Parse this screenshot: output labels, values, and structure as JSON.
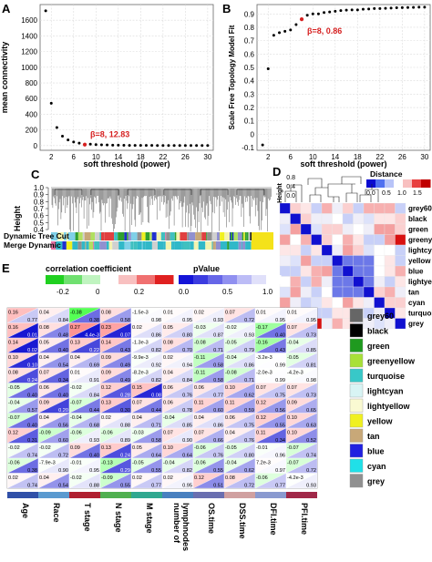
{
  "panels": {
    "A": {
      "letter": "A",
      "chart_data": {
        "type": "scatter",
        "xlabel": "soft threshold (power)",
        "ylabel": "mean connectivity",
        "xticks": [
          "2",
          "6",
          "10",
          "14",
          "18",
          "22",
          "26",
          "30"
        ],
        "yticks": [
          "0",
          "200",
          "400",
          "600",
          "800",
          "1000",
          "1200",
          "1400",
          "1600"
        ],
        "xlim": [
          0,
          31
        ],
        "ylim": [
          -60,
          1800
        ],
        "grid": true,
        "x": [
          1,
          2,
          3,
          4,
          5,
          6,
          7,
          8,
          9,
          10,
          11,
          12,
          13,
          14,
          15,
          16,
          17,
          18,
          19,
          20,
          21,
          22,
          23,
          24,
          25,
          26,
          27,
          28,
          29,
          30
        ],
        "y": [
          1720,
          540,
          230,
          120,
          72,
          46,
          32,
          12.83,
          18,
          13,
          10,
          8,
          6,
          5,
          4,
          3,
          3,
          2,
          2,
          2,
          1,
          1,
          1,
          1,
          1,
          1,
          1,
          1,
          1,
          1
        ],
        "highlight": {
          "index": 7,
          "label": "β=8, 12.83",
          "color": "#d62020"
        }
      }
    },
    "B": {
      "letter": "B",
      "chart_data": {
        "type": "scatter",
        "xlabel": "soft threshold (power)",
        "ylabel": "Scale Free Topology Model Fit",
        "xticks": [
          "2",
          "6",
          "10",
          "14",
          "18",
          "22",
          "26",
          "30"
        ],
        "yticks": [
          "-0.1",
          "0",
          "0.1",
          "0.2",
          "0.3",
          "0.4",
          "0.5",
          "0.6",
          "0.7",
          "0.8",
          "0.9"
        ],
        "xlim": [
          0,
          31
        ],
        "ylim": [
          -0.12,
          0.97
        ],
        "grid": true,
        "x": [
          1,
          2,
          3,
          4,
          5,
          6,
          7,
          8,
          9,
          10,
          11,
          12,
          13,
          14,
          15,
          16,
          17,
          18,
          19,
          20,
          21,
          22,
          23,
          24,
          25,
          26,
          27,
          28,
          29,
          30
        ],
        "y": [
          -0.08,
          0.49,
          0.74,
          0.76,
          0.77,
          0.78,
          0.82,
          0.86,
          0.89,
          0.9,
          0.9,
          0.91,
          0.915,
          0.92,
          0.925,
          0.928,
          0.93,
          0.93,
          0.935,
          0.937,
          0.94,
          0.94,
          0.942,
          0.944,
          0.946,
          0.947,
          0.948,
          0.949,
          0.95,
          0.95
        ],
        "highlight": {
          "index": 7,
          "label": "β=8, 0.86",
          "color": "#d62020"
        }
      }
    },
    "C": {
      "letter": "C",
      "ylabel": "Height",
      "yticks": [
        "1.0",
        "0.9",
        "0.8",
        "0.7",
        "0.6",
        "0.5",
        "0.4"
      ],
      "row_labels": [
        "Dynamic Tree Cut",
        "Merge Dynamic"
      ]
    },
    "D": {
      "letter": "D",
      "legend_title": "Distance",
      "legend_ticks": [
        "0.0",
        "0.5",
        "1.0",
        "1.5"
      ],
      "ylabel": "Height",
      "yticks": [
        "0.8",
        "0.4",
        "0.0"
      ],
      "modules": [
        "grey60",
        "black",
        "green",
        "greenyellow",
        "lightcyan",
        "yellow",
        "blue",
        "lightyellow",
        "tan",
        "cyan",
        "turquoise",
        "grey"
      ]
    },
    "E": {
      "letter": "E",
      "legend_corr": {
        "title": "correlation coefficient",
        "ticks": [
          "-0.2",
          "0",
          "0.2"
        ]
      },
      "legend_p": {
        "title": "pValue",
        "ticks": [
          "0.0",
          "0.5",
          "1.0"
        ]
      },
      "modules": [
        "grey60",
        "black",
        "green",
        "greenyellow",
        "turquoise",
        "lightcyan",
        "lightyellow",
        "yellow",
        "tan",
        "blue",
        "cyan",
        "grey"
      ],
      "module_colors": [
        "#666666",
        "#000000",
        "#1f9a1f",
        "#a8e038",
        "#38c8c8",
        "#d8f4f4",
        "#fafad2",
        "#f0f020",
        "#c8a878",
        "#2020e0",
        "#20e0e8",
        "#909090"
      ],
      "traits": [
        "Age",
        "Race",
        "T stage",
        "N stage",
        "M stage",
        "number of lymphnodes",
        "OS.time",
        "DSS.time",
        "DFI.time",
        "PFI.time"
      ],
      "trait_colors": [
        "#3050a8",
        "#5a9ad0",
        "#b02030",
        "#50b050",
        "#30a890",
        "#4880c0",
        "#6a6fb0",
        "#d0a0a0",
        "#8a9ad0",
        "#a02848"
      ],
      "cells": [
        [
          {
            "r": "0.16",
            "p": "0.77"
          },
          {
            "r": "0.04",
            "p": "0.84"
          },
          {
            "r": "-0.38",
            "p": "0.38"
          },
          {
            "r": "0.08",
            "p": "0.58"
          },
          {
            "r": "-1.5e-3",
            "p": "0.98"
          },
          {
            "r": "0.01",
            "p": "0.95"
          },
          {
            "r": "0.02",
            "p": "0.93"
          },
          {
            "r": "0.07",
            "p": "0.72"
          },
          {
            "r": "0.01",
            "p": "0.95"
          },
          {
            "r": "0.01",
            "p": "0.95"
          }
        ],
        [
          {
            "r": "0.16",
            "p": "0.01"
          },
          {
            "r": "0.08",
            "p": "0.48"
          },
          {
            "r": "0.27",
            "p": "4.4e-3"
          },
          {
            "r": "0.23",
            "p": "0.07"
          },
          {
            "r": "0.02",
            "p": "0.86"
          },
          {
            "r": "0.05",
            "p": "0.80"
          },
          {
            "r": "-0.03",
            "p": "0.87"
          },
          {
            "r": "-0.02",
            "p": "0.93"
          },
          {
            "r": "-0.17",
            "p": "0.40"
          },
          {
            "r": "0.07",
            "p": "0.73"
          }
        ],
        [
          {
            "r": "0.14",
            "p": "0.02"
          },
          {
            "r": "0.05",
            "p": "0.40"
          },
          {
            "r": "0.13",
            "p": "0.22"
          },
          {
            "r": "0.14",
            "p": "0.43"
          },
          {
            "r": "-1.3e-3",
            "p": "0.82"
          },
          {
            "r": "0.08",
            "p": "0.70"
          },
          {
            "r": "-0.08",
            "p": "0.71"
          },
          {
            "r": "-0.05",
            "p": "0.79"
          },
          {
            "r": "-0.16",
            "p": "0.43"
          },
          {
            "r": "-0.04",
            "p": "0.85"
          }
        ],
        [
          {
            "r": "0.10",
            "p": "0.10"
          },
          {
            "r": "0.04",
            "p": "0.54"
          },
          {
            "r": "0.04",
            "p": "0.69"
          },
          {
            "r": "0.09",
            "p": "0.49"
          },
          {
            "r": "-9.9e-3",
            "p": "0.92"
          },
          {
            "r": "0.02",
            "p": "0.94"
          },
          {
            "r": "-0.11",
            "p": "0.58"
          },
          {
            "r": "-0.04",
            "p": "0.86"
          },
          {
            "r": "-3.2e-3",
            "p": "0.99"
          },
          {
            "r": "-0.05",
            "p": "0.81"
          }
        ],
        [
          {
            "r": "0.08",
            "p": "0.24"
          },
          {
            "r": "0.07",
            "p": "0.34"
          },
          {
            "r": "0.01",
            "p": "0.91"
          },
          {
            "r": "0.09",
            "p": "0.49"
          },
          {
            "r": "-8.2e-3",
            "p": "0.82"
          },
          {
            "r": "0.04",
            "p": "0.84"
          },
          {
            "r": "-0.11",
            "p": "0.58"
          },
          {
            "r": "-0.08",
            "p": "0.71"
          },
          {
            "r": "-2.0e-3",
            "p": "0.99"
          },
          {
            "r": "-4.2e-3",
            "p": "0.98"
          }
        ],
        [
          {
            "r": "-0.05",
            "p": "0.40"
          },
          {
            "r": "0.06",
            "p": "0.40"
          },
          {
            "r": "-0.02",
            "p": "0.84"
          },
          {
            "r": "0.12",
            "p": "0.28"
          },
          {
            "r": "0.15",
            "p": "0.08"
          },
          {
            "r": "0.06",
            "p": "0.76"
          },
          {
            "r": "0.06",
            "p": "0.77"
          },
          {
            "r": "0.10",
            "p": "0.62"
          },
          {
            "r": "0.07",
            "p": "0.75"
          },
          {
            "r": "0.07",
            "p": "0.73"
          }
        ],
        [
          {
            "r": "-0.04",
            "p": "0.57"
          },
          {
            "r": "0.09",
            "p": "0.20"
          },
          {
            "r": "-0.07",
            "p": "0.44"
          },
          {
            "r": "0.13",
            "p": "0.30"
          },
          {
            "r": "0.07",
            "p": "0.44"
          },
          {
            "r": "0.06",
            "p": "0.78"
          },
          {
            "r": "0.11",
            "p": "0.60"
          },
          {
            "r": "0.11",
            "p": "0.59"
          },
          {
            "r": "0.12",
            "p": "0.56"
          },
          {
            "r": "0.09",
            "p": "0.65"
          }
        ],
        [
          {
            "r": "-0.07",
            "p": "0.40"
          },
          {
            "r": "0.04",
            "p": "0.56"
          },
          {
            "r": "-0.04",
            "p": "0.68"
          },
          {
            "r": "0.02",
            "p": "0.88"
          },
          {
            "r": "0.04",
            "p": "0.71"
          },
          {
            "r": "-0.04",
            "p": "0.85"
          },
          {
            "r": "0.04",
            "p": "0.86"
          },
          {
            "r": "0.06",
            "p": "0.75"
          },
          {
            "r": "0.12",
            "p": "0.55"
          },
          {
            "r": "0.10",
            "p": "0.63"
          }
        ],
        [
          {
            "r": "0.12",
            "p": "0.31"
          },
          {
            "r": "-0.09",
            "p": "0.60"
          },
          {
            "r": "-0.06",
            "p": "0.93"
          },
          {
            "r": "-0.06",
            "p": "0.89"
          },
          {
            "r": "-0.03",
            "p": "0.58"
          },
          {
            "r": "0.07",
            "p": "0.90"
          },
          {
            "r": "0.07",
            "p": "0.66"
          },
          {
            "r": "0.04",
            "p": "0.76"
          },
          {
            "r": "0.11",
            "p": "0.34"
          },
          {
            "r": "0.10",
            "p": "0.52"
          }
        ],
        [
          {
            "r": "-0.02",
            "p": "0.74"
          },
          {
            "r": "-0.02",
            "p": "0.72"
          },
          {
            "r": "0.09",
            "p": "0.40"
          },
          {
            "r": "0.13",
            "p": "0.24"
          },
          {
            "r": "0.05",
            "p": "0.64"
          },
          {
            "r": "0.10",
            "p": "0.64"
          },
          {
            "r": "-0.06",
            "p": "0.76"
          },
          {
            "r": "-0.05",
            "p": "0.80"
          },
          {
            "r": "-0.01",
            "p": "0.96"
          },
          {
            "r": "-0.07",
            "p": "0.74"
          }
        ],
        [
          {
            "r": "-0.06",
            "p": "0.38"
          },
          {
            "r": "-7.9e-3",
            "p": "0.90"
          },
          {
            "r": "-0.01",
            "p": "0.95"
          },
          {
            "r": "-0.13",
            "p": "0.29"
          },
          {
            "r": "-0.05",
            "p": "0.55"
          },
          {
            "r": "-0.04",
            "p": "0.82"
          },
          {
            "r": "-0.06",
            "p": "0.55"
          },
          {
            "r": "-0.04",
            "p": "0.62"
          },
          {
            "r": "7.2e-3",
            "p": "0.97"
          },
          {
            "r": "-0.07",
            "p": "0.72"
          }
        ],
        [
          {
            "r": "0.02",
            "p": "0.74"
          },
          {
            "r": "0.04",
            "p": "0.54"
          },
          {
            "r": "-0.02",
            "p": "0.88"
          },
          {
            "r": "-0.09",
            "p": "0.55"
          },
          {
            "r": "0.02",
            "p": "0.77"
          },
          {
            "r": "0.02",
            "p": "0.95"
          },
          {
            "r": "0.12",
            "p": "0.51"
          },
          {
            "r": "0.08",
            "p": "0.72"
          },
          {
            "r": "-0.06",
            "p": "0.77"
          },
          {
            "r": "-4.2e-3",
            "p": "0.93"
          }
        ]
      ]
    }
  }
}
